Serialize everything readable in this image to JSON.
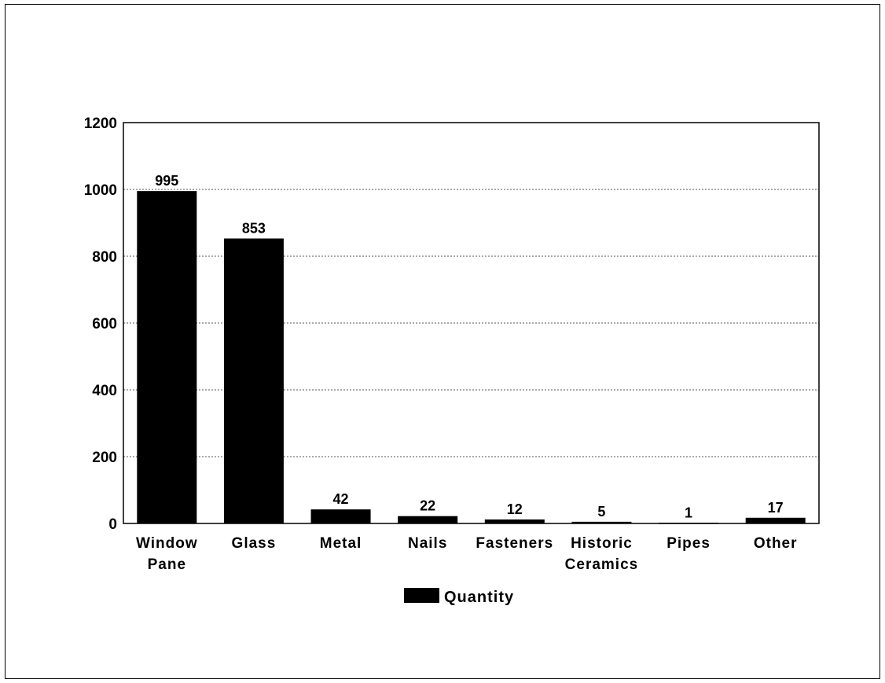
{
  "chart_data": {
    "type": "bar",
    "categories": [
      "Window Pane",
      "Glass",
      "Metal",
      "Nails",
      "Fasteners",
      "Historic Ceramics",
      "Pipes",
      "Other"
    ],
    "category_lines": [
      [
        "Window",
        "Pane"
      ],
      [
        "Glass"
      ],
      [
        "Metal"
      ],
      [
        "Nails"
      ],
      [
        "Fasteners"
      ],
      [
        "Historic",
        "Ceramics"
      ],
      [
        "Pipes"
      ],
      [
        "Other"
      ]
    ],
    "series": [
      {
        "name": "Quantity",
        "values": [
          995,
          853,
          42,
          22,
          12,
          5,
          1,
          17
        ]
      }
    ],
    "ylim": [
      0,
      1200
    ],
    "yticks": [
      0,
      200,
      400,
      600,
      800,
      1000,
      1200
    ],
    "grid": true,
    "legend": {
      "position": "bottom-center",
      "label": "Quantity"
    },
    "colors": {
      "bar": "#000000",
      "grid": "#555555"
    }
  }
}
